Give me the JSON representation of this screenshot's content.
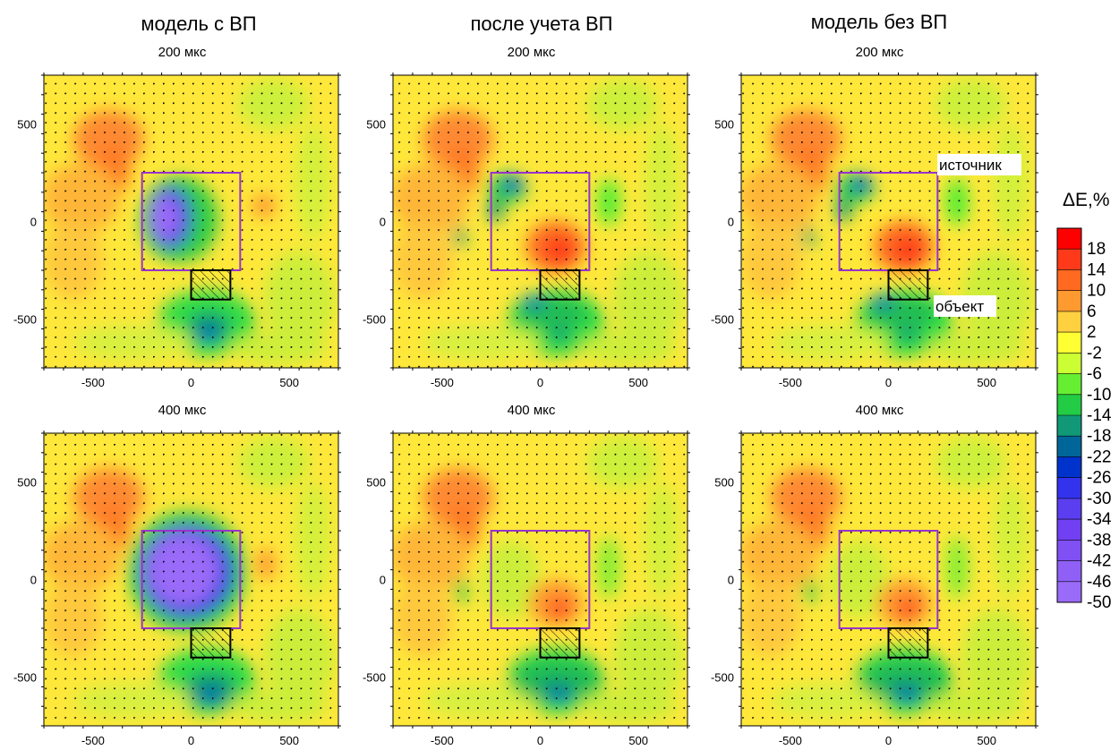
{
  "columns": [
    {
      "title": "модель с ВП"
    },
    {
      "title": "после учета ВП"
    },
    {
      "title": "модель без ВП"
    }
  ],
  "rows": [
    {
      "time_label": "200 мкс"
    },
    {
      "time_label": "400 мкс"
    }
  ],
  "axes": {
    "x_ticks": [
      "-500",
      "0",
      "500"
    ],
    "y_ticks": [
      "500",
      "0",
      "-500"
    ],
    "x_range": [
      -750,
      750
    ],
    "y_range": [
      -750,
      750
    ]
  },
  "annotations": {
    "source_label": "источник",
    "object_label": "объект"
  },
  "source_rect": {
    "x": [
      -250,
      250
    ],
    "y": [
      -250,
      250
    ]
  },
  "object_rect": {
    "x": [
      0,
      200
    ],
    "y": [
      -400,
      -250
    ]
  },
  "colorbar": {
    "title": "ΔE,%",
    "labels": [
      "18",
      "14",
      "10",
      "6",
      "2",
      "-2",
      "-6",
      "-10",
      "-14",
      "-18",
      "-22",
      "-26",
      "-30",
      "-34",
      "-38",
      "-42",
      "-46",
      "-50"
    ],
    "colors": [
      "#ff0000",
      "#ff3a1a",
      "#ff6a20",
      "#ff9a30",
      "#ffd040",
      "#ffff33",
      "#ccff33",
      "#66ee33",
      "#22cc44",
      "#119977",
      "#006699",
      "#0033cc",
      "#3333ee",
      "#5a3ef0",
      "#7040f2",
      "#8050f4",
      "#9060f6",
      "#9a6af8"
    ]
  },
  "colors": {
    "source_outline": "#9933cc",
    "object_outline": "#000000"
  }
}
